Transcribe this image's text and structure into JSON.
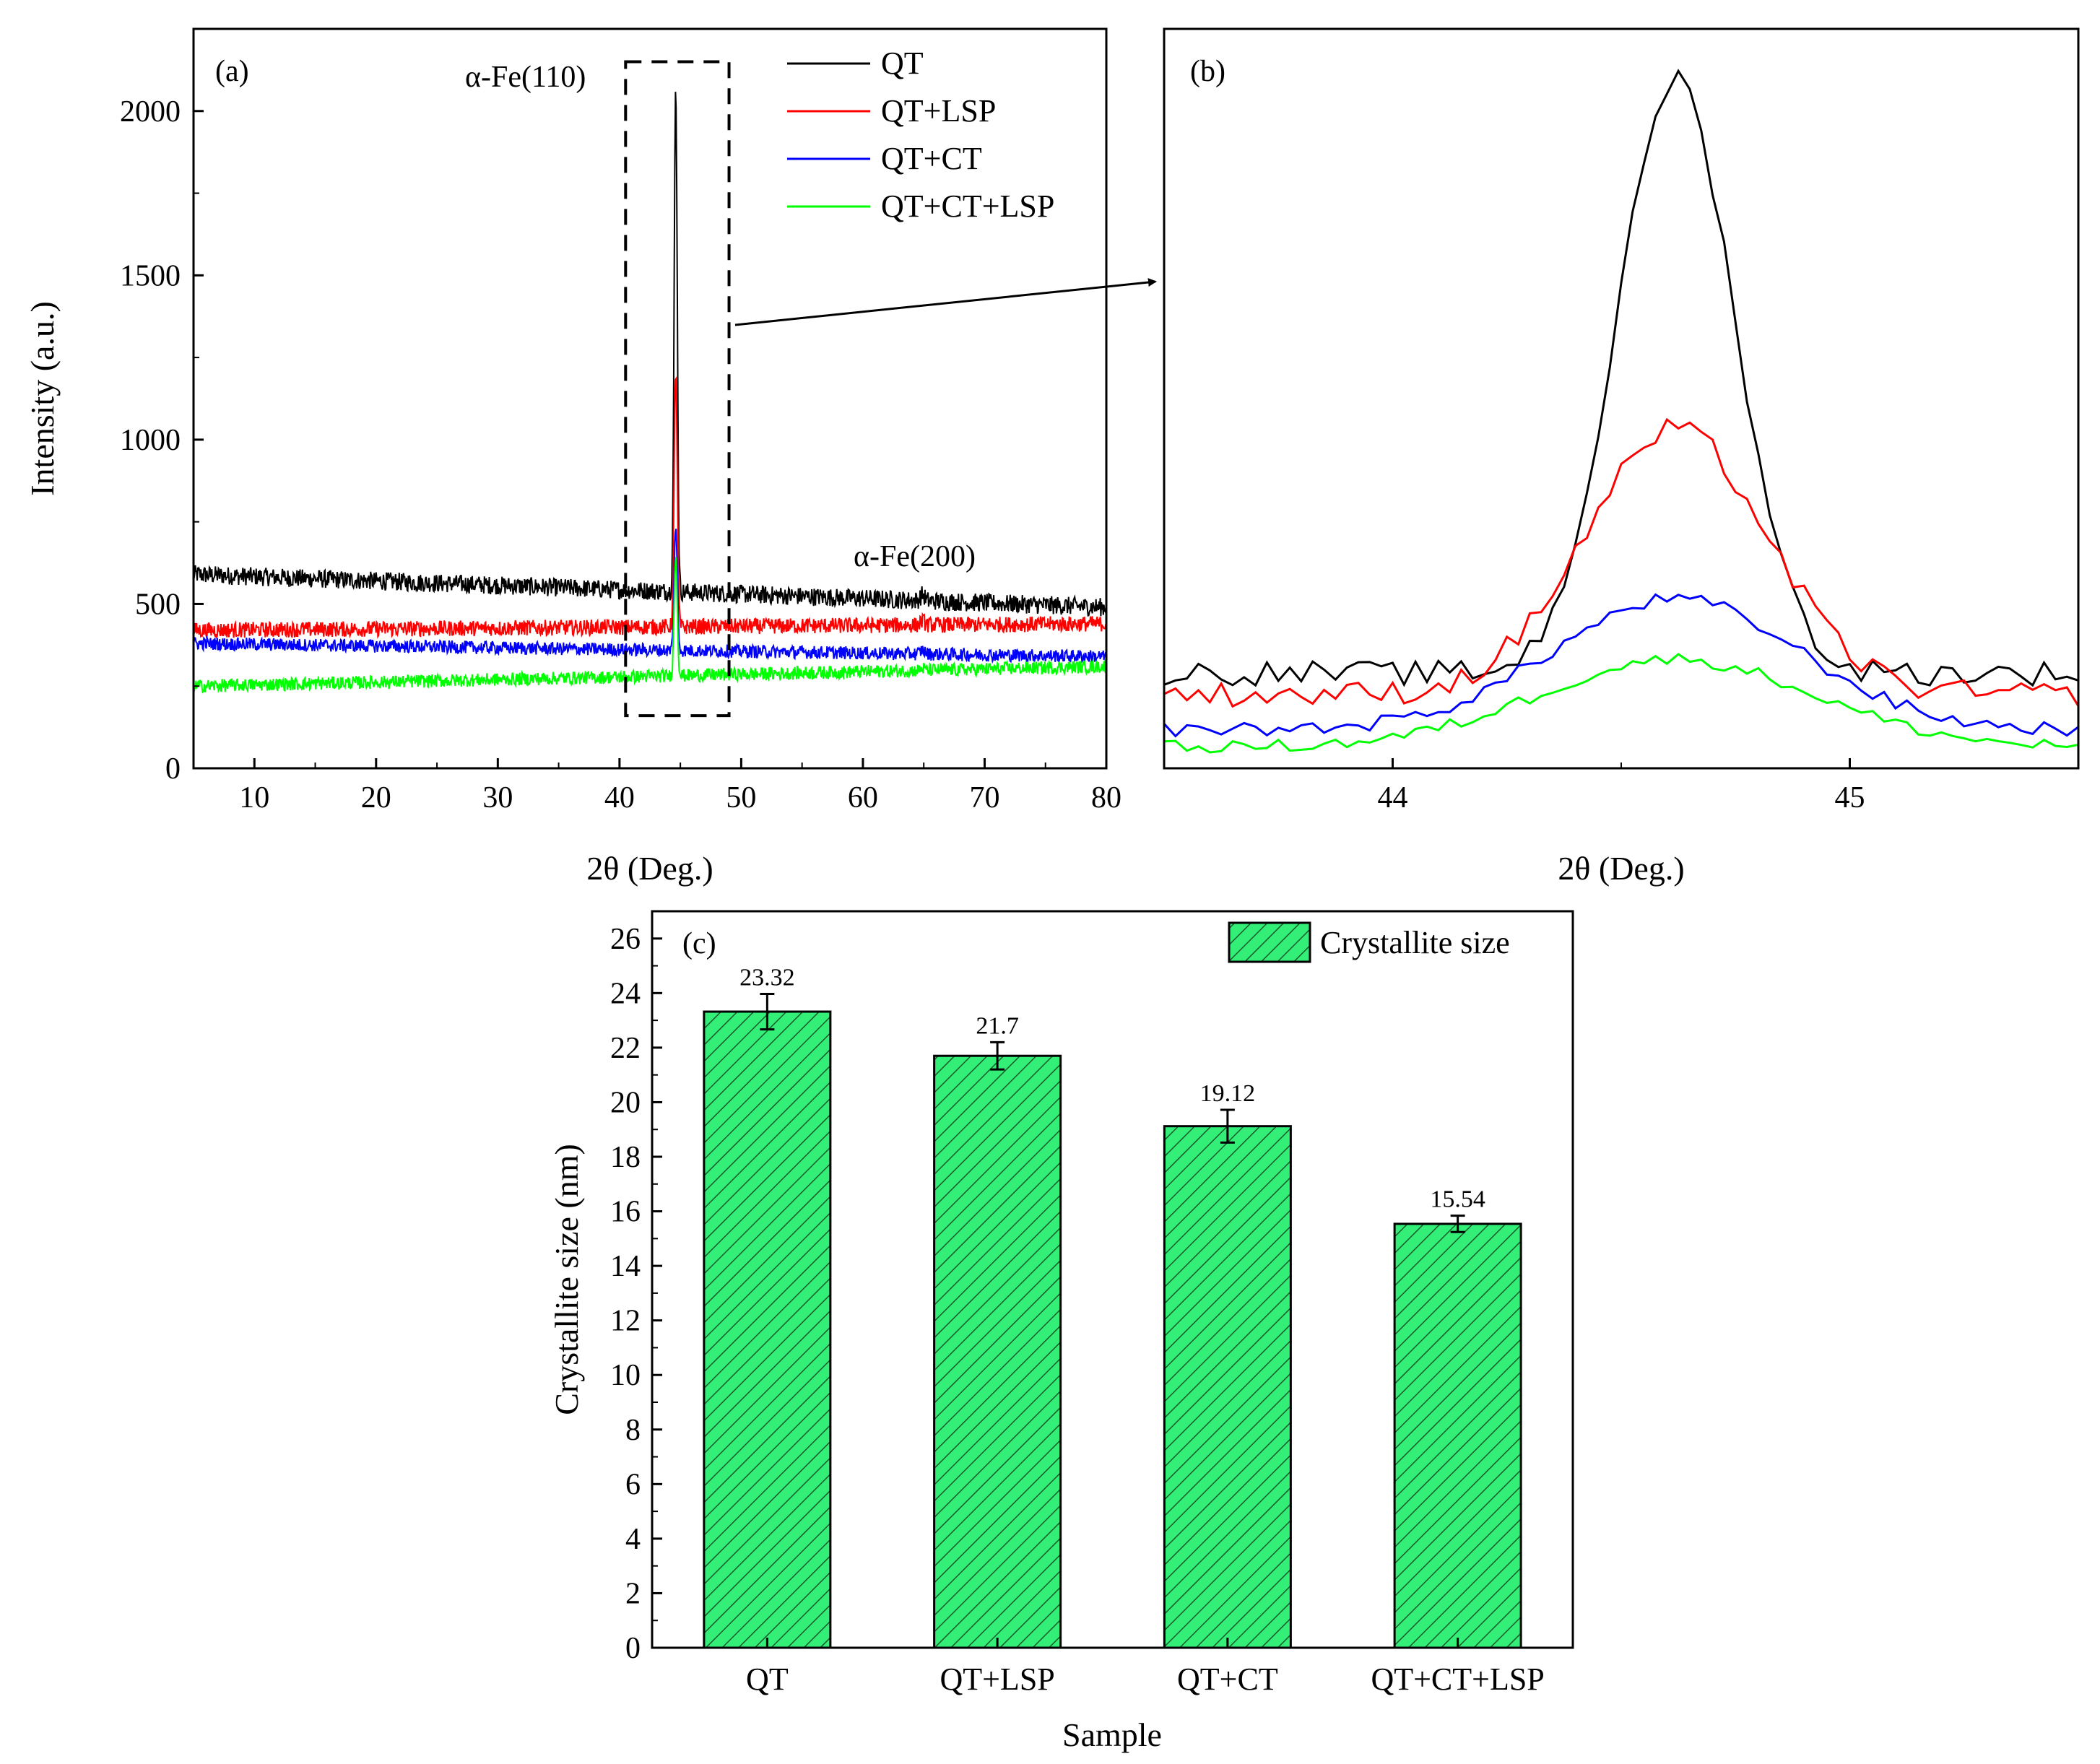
{
  "chart_data": [
    {
      "panel": "(a)",
      "type": "line",
      "xlabel": "2θ (Deg.)",
      "ylabel": "Intensity (a.u.)",
      "xlim": [
        5,
        80
      ],
      "ylim": [
        0,
        2250
      ],
      "xticks": [
        10,
        20,
        30,
        40,
        50,
        60,
        70,
        80
      ],
      "yticks": [
        0,
        500,
        1000,
        1500,
        2000
      ],
      "legend_position": "top-right",
      "annotations": [
        "α-Fe(110)",
        "α-Fe(200)"
      ],
      "zoom_box_x": [
        40.5,
        49
      ],
      "zoom_box_y": [
        160,
        2150
      ],
      "series": [
        {
          "name": "QT",
          "color": "#000000",
          "baseline_start": 590,
          "baseline_end": 490,
          "noise": 28,
          "peak": 2120,
          "peak2": 520
        },
        {
          "name": "QT+LSP",
          "color": "#ff0000",
          "baseline_start": 420,
          "baseline_end": 440,
          "noise": 24,
          "peak": 1200,
          "peak2": 460
        },
        {
          "name": "QT+CT",
          "color": "#0000ff",
          "baseline_start": 380,
          "baseline_end": 340,
          "noise": 20,
          "peak": 760,
          "peak2": 360
        },
        {
          "name": "QT+CT+LSP",
          "color": "#00ff00",
          "baseline_start": 250,
          "baseline_end": 310,
          "noise": 20,
          "peak": 620,
          "peak2": 320
        }
      ]
    },
    {
      "panel": "(b)",
      "type": "line",
      "xlabel": "2θ (Deg.)",
      "xlim": [
        43.5,
        45.5
      ],
      "ylim": [
        150,
        2250
      ],
      "xticks": [
        44,
        45
      ],
      "peak_center": 44.62,
      "series": [
        {
          "name": "QT",
          "color": "#000000",
          "base": 420,
          "peak": 2110,
          "width": 0.18,
          "noise": 35
        },
        {
          "name": "QT+LSP",
          "color": "#ff0000",
          "base": 360,
          "peak": 1110,
          "width": 0.28,
          "noise": 35
        },
        {
          "name": "QT+CT",
          "color": "#0000ff",
          "base": 260,
          "peak": 630,
          "width": 0.38,
          "noise": 20
        },
        {
          "name": "QT+CT+LSP",
          "color": "#00ff00",
          "base": 210,
          "peak": 460,
          "width": 0.42,
          "noise": 18
        }
      ]
    },
    {
      "panel": "(c)",
      "type": "bar",
      "xlabel": "Sample",
      "ylabel": "Crystallite size (nm)",
      "ylim": [
        0,
        27
      ],
      "yticks": [
        0,
        2,
        4,
        6,
        8,
        10,
        12,
        14,
        16,
        18,
        20,
        22,
        24,
        26
      ],
      "categories": [
        "QT",
        "QT+LSP",
        "QT+CT",
        "QT+CT+LSP"
      ],
      "values": [
        23.32,
        21.7,
        19.12,
        15.54
      ],
      "value_labels": [
        "23.32",
        "21.7",
        "19.12",
        "15.54"
      ],
      "errors": [
        0.65,
        0.5,
        0.6,
        0.3
      ],
      "legend": "Crystallite size",
      "legend_position": "top-right",
      "bar_color": "#33ee77",
      "hatch": "diagonal"
    }
  ]
}
